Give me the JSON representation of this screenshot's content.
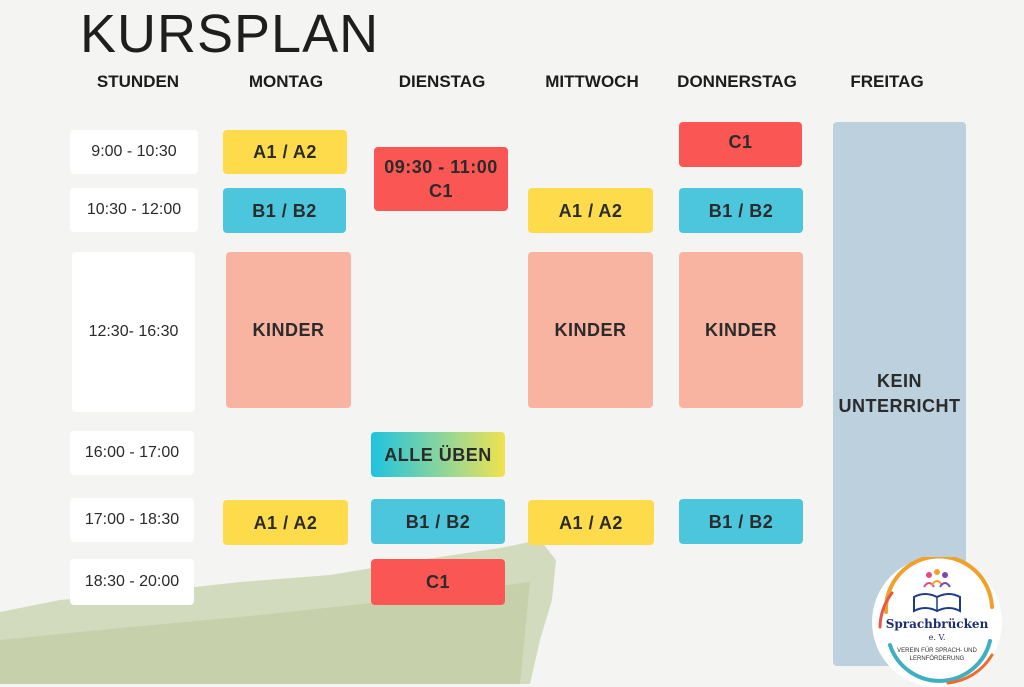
{
  "title": "KURSPLAN",
  "headers": [
    "STUNDEN",
    "MONTAG",
    "DIENSTAG",
    "MITTWOCH",
    "DONNERSTAG",
    "FREITAG"
  ],
  "times": [
    "9:00 - 10:30",
    "10:30 - 12:00",
    "12:30- 16:30",
    "16:00 - 17:00",
    "17:00 - 18:30",
    "18:30 - 20:00"
  ],
  "courses": {
    "a1a2": "A1 / A2",
    "b1b2": "B1 / B2",
    "c1": "C1",
    "kinder": "KINDER",
    "alle_ueben": "ALLE ÜBEN",
    "tue_time": "09:30 - 11:00"
  },
  "friday": {
    "line1": "KEIN",
    "line2": "UNTERRICHT"
  },
  "logo": {
    "name": "Sprachbrücken",
    "suffix": "e. V.",
    "sub1": "VEREIN FÜR SPRACH- UND",
    "sub2": "LERNFÖRDERUNG"
  },
  "colors": {
    "yellow": "#fddb4a",
    "cyan": "#4cc6dc",
    "red": "#fa5654",
    "salmon": "#f9b4a1",
    "friday": "#bcd0dd"
  }
}
